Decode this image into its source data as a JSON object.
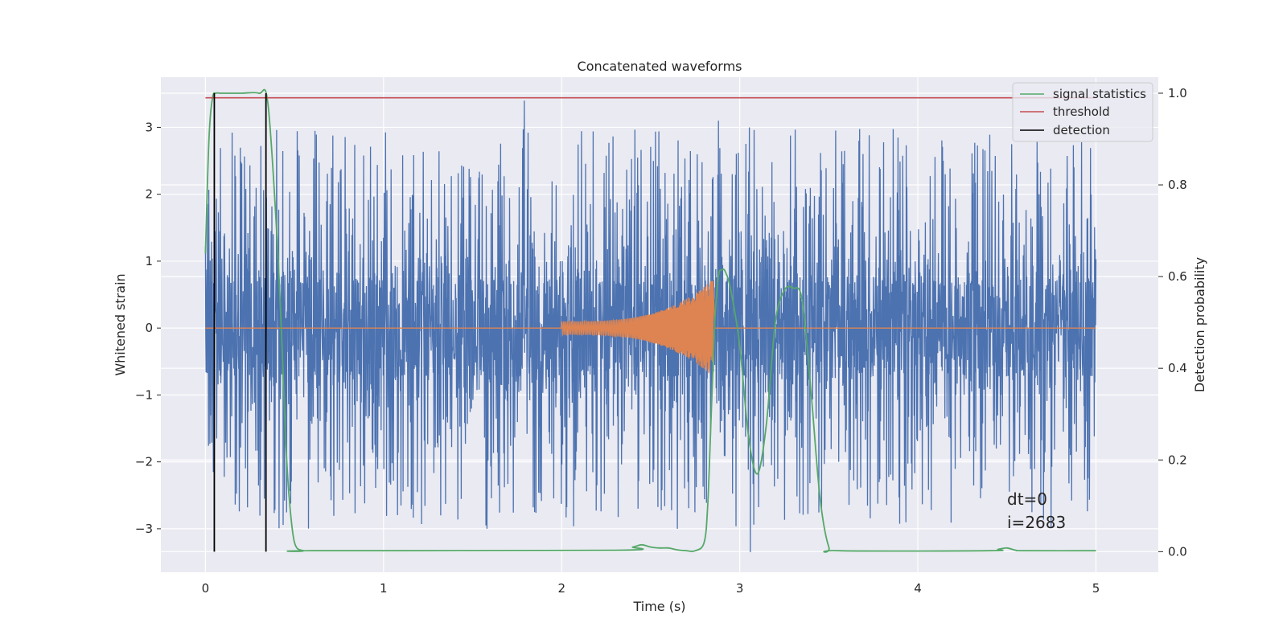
{
  "chart_data": {
    "type": "line",
    "title": "Concatenated waveforms",
    "xlabel": "Time (s)",
    "ylabel": "Whitened strain",
    "y2label": "Detection probability",
    "xlim": [
      -0.25,
      5.35
    ],
    "ylim": [
      -3.65,
      3.75
    ],
    "y2lim": [
      -0.045,
      1.035
    ],
    "xticks": [
      0,
      1,
      2,
      3,
      4,
      5
    ],
    "yticks": [
      -3,
      -2,
      -1,
      0,
      1,
      2,
      3
    ],
    "yticklabels": [
      "−3",
      "−2",
      "−1",
      "0",
      "1",
      "2",
      "3"
    ],
    "y2ticks": [
      0.0,
      0.2,
      0.4,
      0.6,
      0.8,
      1.0
    ],
    "y2ticklabels": [
      "0.0",
      "0.2",
      "0.4",
      "0.6",
      "0.8",
      "1.0"
    ],
    "grid": true,
    "legend_position": "top-right",
    "legend": [
      {
        "label": "signal statistics",
        "color": "#55a868"
      },
      {
        "label": "threshold",
        "color": "#c44e52"
      },
      {
        "label": "detection",
        "color": "#000000"
      }
    ],
    "annotations": [
      {
        "text": "dt=0",
        "x": 4.5,
        "y": -2.55
      },
      {
        "text": "i=2683",
        "x": 4.5,
        "y": -2.95
      }
    ],
    "series": [
      {
        "kind": "noise",
        "axis": "left",
        "color": "#4c72b0",
        "x_range": [
          0,
          5
        ],
        "typical_amplitude": 0.7,
        "peak_amplitude": 3.0,
        "extremes": [
          {
            "x": 1.79,
            "y": 3.4
          },
          {
            "x": 2.65,
            "y": 3.15
          },
          {
            "x": 2.88,
            "y": 3.1
          },
          {
            "x": 3.06,
            "y": -3.35
          },
          {
            "x": 1.58,
            "y": -3.0
          },
          {
            "x": 2.65,
            "y": -3.0
          },
          {
            "x": 0.33,
            "y": -2.55
          }
        ]
      },
      {
        "kind": "chirp",
        "axis": "left",
        "color": "#dd8452",
        "x_range": [
          0,
          5
        ],
        "chirp_start": 2.0,
        "chirp_end": 2.85,
        "start_amplitude": 0.1,
        "end_amplitude": 0.73
      },
      {
        "name": "signal statistics",
        "axis": "right",
        "color": "#55a868",
        "x": [
          0,
          0.02,
          0.04,
          0.06,
          0.08,
          0.1,
          0.2,
          0.3,
          0.35,
          0.4,
          0.43,
          0.45,
          0.47,
          0.5,
          0.55,
          0.6,
          2.3,
          2.4,
          2.45,
          2.5,
          2.55,
          2.6,
          2.65,
          2.7,
          2.75,
          2.8,
          2.82,
          2.84,
          2.86,
          2.88,
          2.9,
          2.92,
          2.95,
          3.0,
          3.05,
          3.1,
          3.15,
          3.2,
          3.25,
          3.3,
          3.35,
          3.4,
          3.45,
          3.5,
          3.55,
          4.4,
          4.45,
          4.5,
          4.55,
          4.6,
          5.0
        ],
        "y": [
          0.65,
          0.9,
          0.99,
          1.0,
          1.0,
          1.0,
          1.0,
          1.0,
          0.98,
          0.7,
          0.45,
          0.25,
          0.12,
          0.02,
          0.002,
          0.002,
          0.003,
          0.01,
          0.015,
          0.01,
          0.008,
          0.008,
          0.004,
          0.002,
          0.002,
          0.02,
          0.1,
          0.3,
          0.5,
          0.6,
          0.615,
          0.61,
          0.57,
          0.45,
          0.25,
          0.17,
          0.28,
          0.5,
          0.57,
          0.575,
          0.55,
          0.35,
          0.12,
          0.01,
          0.002,
          0.002,
          0.005,
          0.008,
          0.003,
          0.002,
          0.002
        ]
      },
      {
        "name": "threshold",
        "axis": "right",
        "color": "#c44e52",
        "x": [
          0,
          5
        ],
        "y": [
          0.99,
          0.99
        ]
      },
      {
        "name": "detection",
        "axis": "right",
        "kind": "vlines",
        "color": "#000000",
        "x": [
          0.05,
          0.34
        ],
        "y_range": [
          0.0,
          1.0
        ]
      }
    ]
  }
}
